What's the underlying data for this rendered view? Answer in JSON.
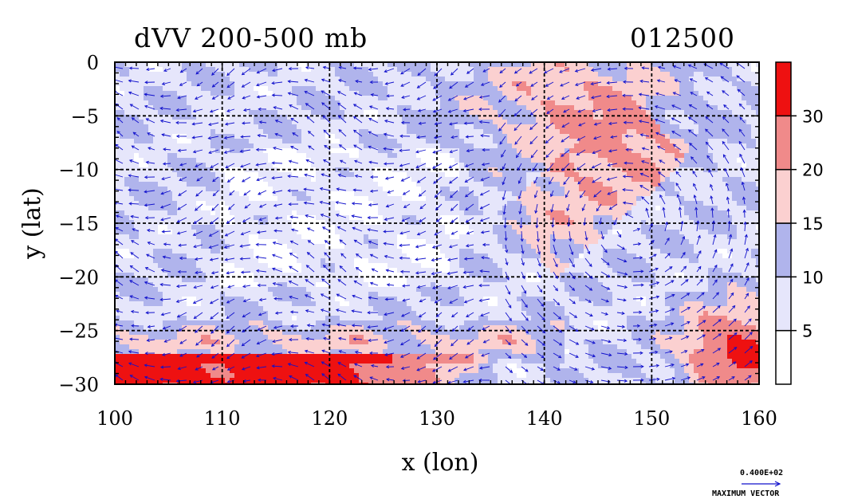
{
  "chart_data": {
    "type": "heatmap",
    "title": "dVV 200-500 mb",
    "subtitle": "012500",
    "xlabel": "x (lon)",
    "ylabel": "y (lat)",
    "xlim": [
      100,
      160
    ],
    "ylim": [
      -30,
      0
    ],
    "xticks": [
      100,
      110,
      120,
      130,
      140,
      150,
      160
    ],
    "yticks": [
      0,
      -5,
      -10,
      -15,
      -20,
      -25,
      -30
    ],
    "grid": true,
    "grid_style": "dashed",
    "colorbar": {
      "levels": [
        0,
        5,
        10,
        15,
        20,
        30,
        40
      ],
      "tick_labels": [
        "5",
        "10",
        "15",
        "20",
        "30"
      ],
      "colors": [
        "#ffffff",
        "#e6e6fb",
        "#b0b4ec",
        "#fbd0d0",
        "#f08a8a",
        "#ee1111"
      ]
    },
    "vector_overlay": {
      "reference_value": "0.400E+02",
      "reference_label": "MAXIMUM VECTOR",
      "color": "#1010cc"
    },
    "regions": [
      {
        "desc": "strong band along southern edge",
        "lon": [
          100,
          130
        ],
        "lat": [
          -30,
          -27
        ],
        "value": 35
      },
      {
        "desc": "moderate band south",
        "lon": [
          100,
          140
        ],
        "lat": [
          -27,
          -24
        ],
        "value": 18
      },
      {
        "desc": "northeast maximum",
        "lon": [
          136,
          150
        ],
        "lat": [
          -10,
          0
        ],
        "value": 20
      },
      {
        "desc": "diagonal band east",
        "lon": [
          138,
          156
        ],
        "lat": [
          -25,
          -12
        ],
        "value": 15
      },
      {
        "desc": "southeast corner maximum",
        "lon": [
          152,
          160
        ],
        "lat": [
          -30,
          -22
        ],
        "value": 33
      },
      {
        "desc": "central weak area",
        "lon": [
          110,
          130
        ],
        "lat": [
          -20,
          -8
        ],
        "value": 7
      }
    ]
  }
}
